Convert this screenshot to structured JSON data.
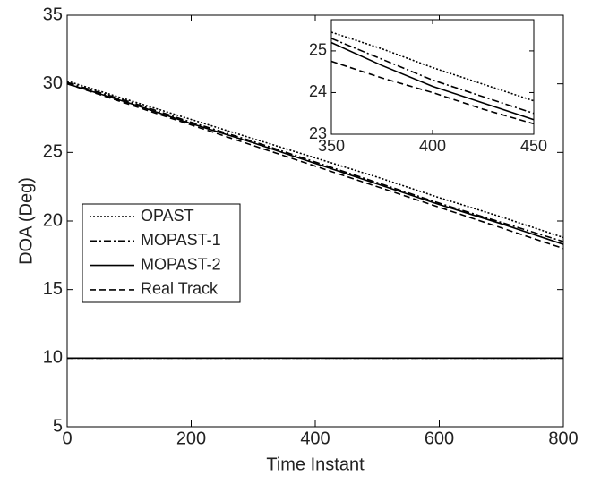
{
  "chart_data": [
    {
      "type": "line",
      "x_label": "Time Instant",
      "y_label": "DOA (Deg)",
      "xlim": [
        0,
        800
      ],
      "ylim": [
        5,
        35
      ],
      "xticks": [
        0,
        200,
        400,
        600,
        800
      ],
      "yticks": [
        5,
        10,
        15,
        20,
        25,
        30,
        35
      ],
      "legend": "left",
      "x": [
        0,
        100,
        200,
        300,
        400,
        500,
        600,
        700,
        800,
        null,
        0,
        100,
        200,
        300,
        400,
        500,
        600,
        700,
        800
      ],
      "series": [
        {
          "name": "OPAST",
          "color": "#000000",
          "dash": "dotted",
          "values": [
            30.2,
            28.8,
            27.4,
            26,
            24.6,
            23.2,
            21.7,
            20.3,
            18.8,
            null,
            10,
            10,
            10,
            10,
            10,
            10,
            10,
            10,
            10
          ]
        },
        {
          "name": "MOPAST-1",
          "color": "#000000",
          "dash": "dashdot",
          "values": [
            30.1,
            28.7,
            27.2,
            25.8,
            24.3,
            22.8,
            21.3,
            19.9,
            18.5,
            null,
            10,
            10,
            10,
            10,
            10,
            10,
            10,
            10,
            10
          ]
        },
        {
          "name": "MOPAST-2",
          "color": "#000000",
          "dash": "solid",
          "values": [
            30,
            28.6,
            27.1,
            25.7,
            24.2,
            22.7,
            21.2,
            19.8,
            18.3,
            null,
            10,
            10,
            10,
            10,
            10,
            10,
            10,
            10,
            10
          ]
        },
        {
          "name": "Real Track",
          "color": "#000000",
          "dash": "dashed",
          "values": [
            30,
            28.5,
            27,
            25.5,
            24,
            22.5,
            21,
            19.5,
            18,
            null,
            10,
            10,
            10,
            10,
            10,
            10,
            10,
            10,
            10
          ]
        }
      ]
    },
    {
      "type": "line",
      "xlim": [
        350,
        450
      ],
      "ylim": [
        23,
        25.75
      ],
      "xticks": [
        350,
        400,
        450
      ],
      "yticks": [
        23,
        24,
        25
      ],
      "x": [
        350,
        375,
        400,
        425,
        450
      ],
      "series": [
        {
          "color": "#000000",
          "dash": "dotted",
          "values": [
            25.45,
            25.05,
            24.6,
            24.2,
            23.8
          ]
        },
        {
          "color": "#000000",
          "dash": "dashdot",
          "values": [
            25.3,
            24.8,
            24.3,
            23.9,
            23.5
          ]
        },
        {
          "color": "#000000",
          "dash": "solid",
          "values": [
            25.2,
            24.65,
            24.15,
            23.75,
            23.35
          ]
        },
        {
          "color": "#000000",
          "dash": "dashed",
          "values": [
            24.75,
            24.35,
            24,
            23.6,
            23.25
          ]
        }
      ]
    }
  ]
}
